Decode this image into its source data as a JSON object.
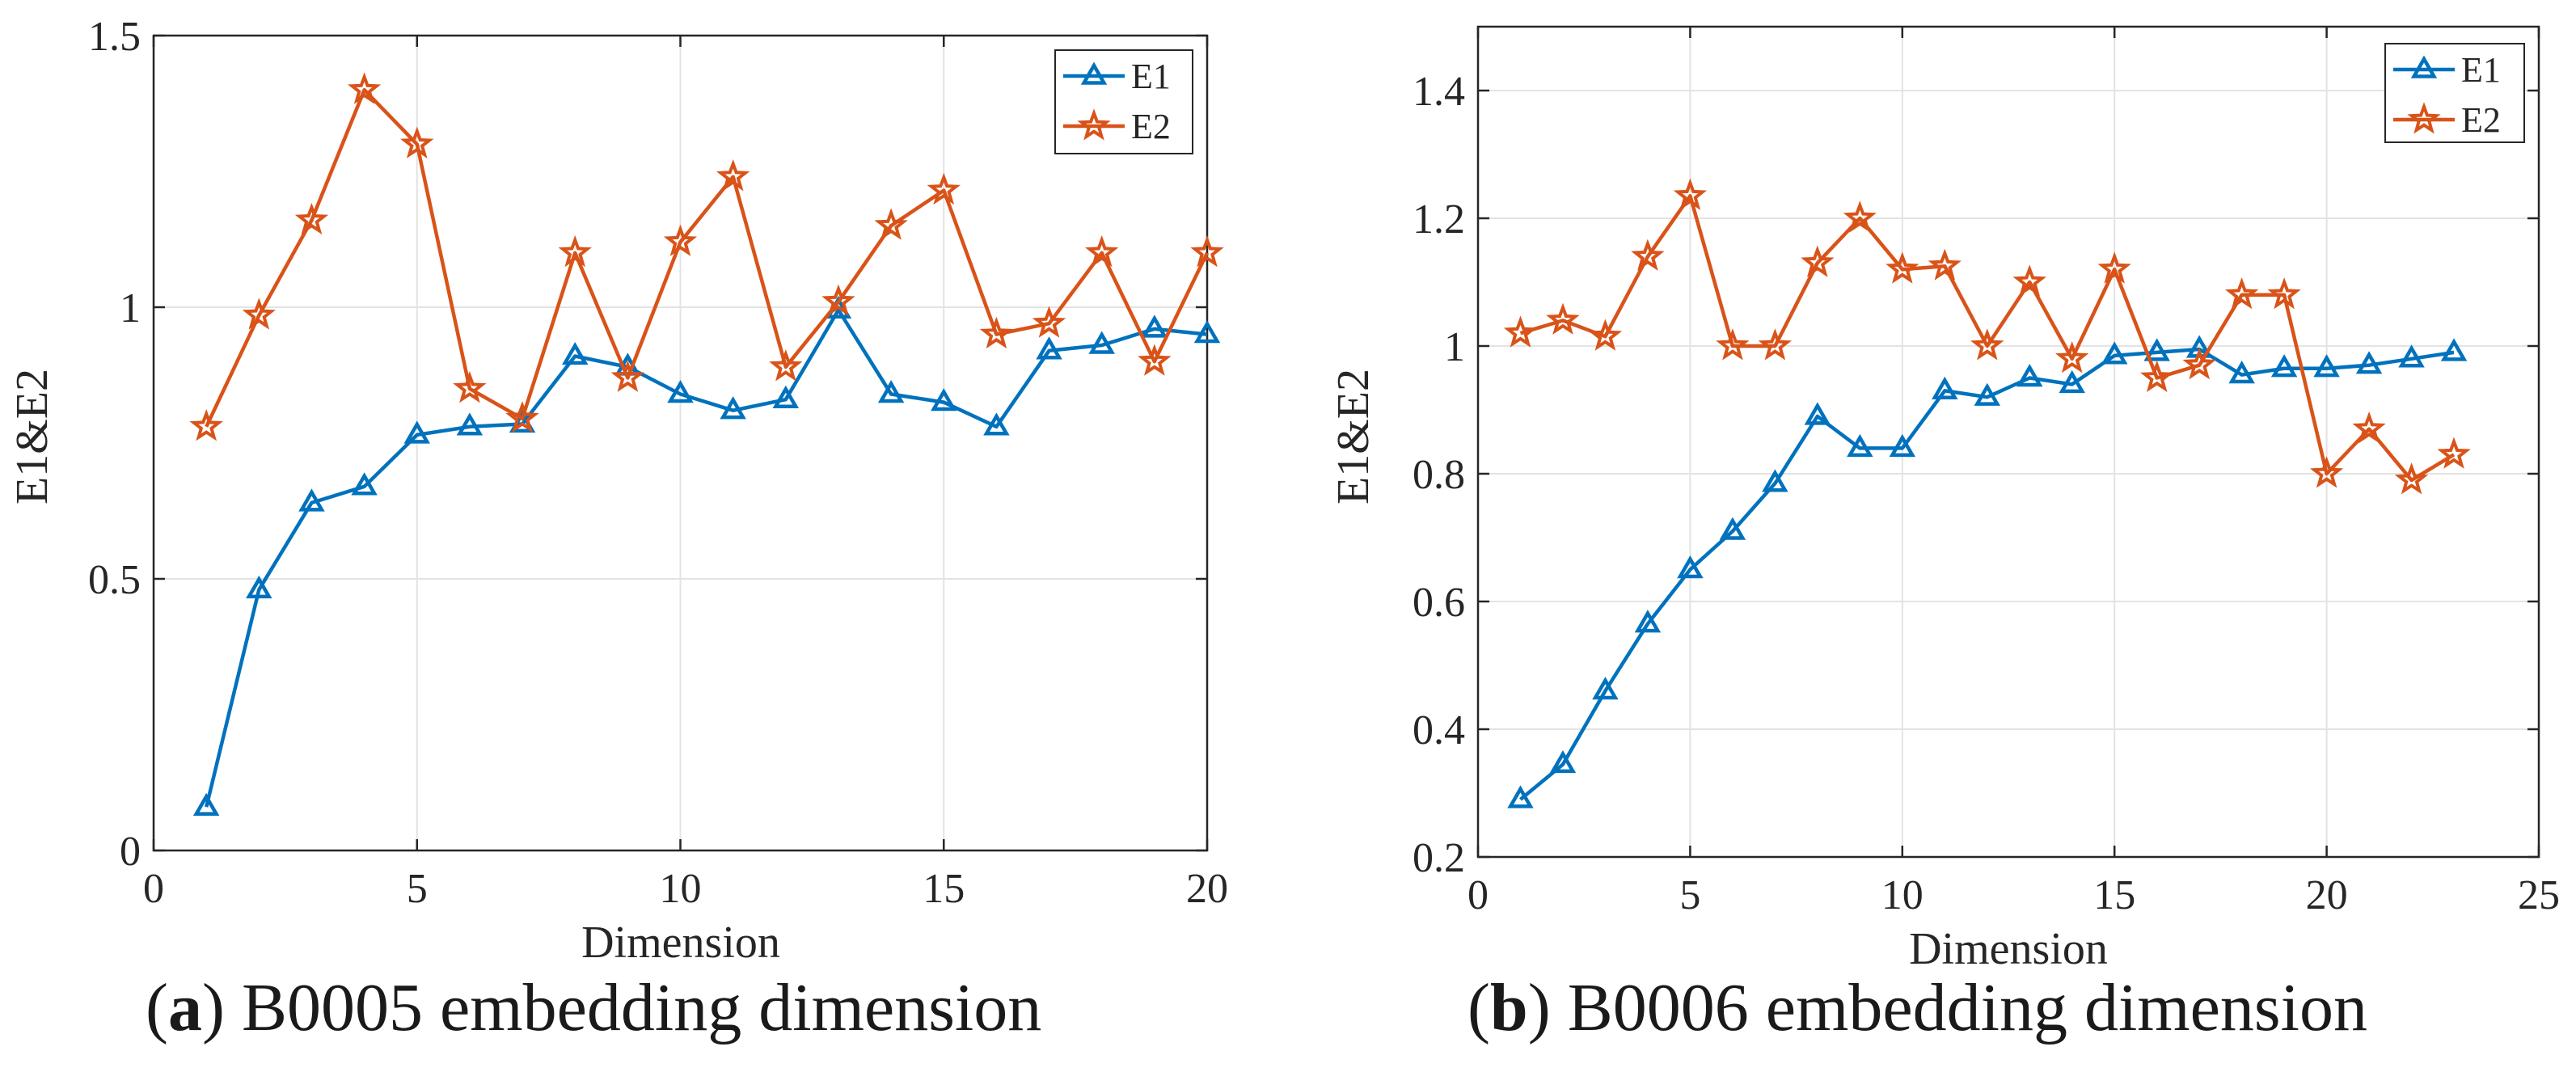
{
  "colors": {
    "E1": "#0072BD",
    "E2": "#D95319"
  },
  "chart_data": [
    {
      "type": "line",
      "caption_letter": "a",
      "caption_text": " B0005 embedding dimension",
      "xlabel": "Dimension",
      "ylabel": "E1&E2",
      "xlim": [
        0,
        20
      ],
      "ylim": [
        0,
        1.5
      ],
      "xticks": [
        0,
        5,
        10,
        15,
        20
      ],
      "yticks": [
        0,
        0.5,
        1,
        1.5
      ],
      "xtick_labels": [
        "0",
        "5",
        "10",
        "15",
        "20"
      ],
      "ytick_labels": [
        "0",
        "0.5",
        "1",
        "1.5"
      ],
      "grid": true,
      "legend_position": "top-right",
      "series": [
        {
          "name": "E1",
          "marker": "triangle",
          "x": [
            1,
            2,
            3,
            4,
            5,
            6,
            7,
            8,
            9,
            10,
            11,
            12,
            13,
            14,
            15,
            16,
            17,
            18,
            19,
            20
          ],
          "values": [
            0.08,
            0.48,
            0.64,
            0.67,
            0.765,
            0.78,
            0.785,
            0.91,
            0.89,
            0.84,
            0.81,
            0.83,
            0.995,
            0.84,
            0.825,
            0.78,
            0.92,
            0.93,
            0.96,
            0.95
          ]
        },
        {
          "name": "E2",
          "marker": "star",
          "x": [
            1,
            2,
            3,
            4,
            5,
            6,
            7,
            8,
            9,
            10,
            11,
            12,
            13,
            14,
            15,
            16,
            17,
            18,
            19,
            20
          ],
          "values": [
            0.78,
            0.985,
            1.16,
            1.4,
            1.3,
            0.85,
            0.795,
            1.1,
            0.87,
            1.12,
            1.24,
            0.89,
            1.01,
            1.15,
            1.215,
            0.95,
            0.97,
            1.1,
            0.9,
            1.1
          ]
        }
      ]
    },
    {
      "type": "line",
      "caption_letter": "b",
      "caption_text": " B0006 embedding dimension",
      "xlabel": "Dimension",
      "ylabel": "E1&E2",
      "xlim": [
        0,
        25
      ],
      "ylim": [
        0.2,
        1.5
      ],
      "xticks": [
        0,
        5,
        10,
        15,
        20,
        25
      ],
      "yticks": [
        0.2,
        0.4,
        0.6,
        0.8,
        1,
        1.2,
        1.4
      ],
      "xtick_labels": [
        "0",
        "5",
        "10",
        "15",
        "20",
        "25"
      ],
      "ytick_labels": [
        "0.2",
        "0.4",
        "0.6",
        "0.8",
        "1",
        "1.2",
        "1.4"
      ],
      "grid": true,
      "legend_position": "top-right",
      "series": [
        {
          "name": "E1",
          "marker": "triangle",
          "x": [
            1,
            2,
            3,
            4,
            5,
            6,
            7,
            8,
            9,
            10,
            11,
            12,
            13,
            14,
            15,
            16,
            17,
            18,
            19,
            20,
            21,
            22,
            23
          ],
          "values": [
            0.29,
            0.345,
            0.46,
            0.565,
            0.65,
            0.71,
            0.785,
            0.89,
            0.84,
            0.84,
            0.93,
            0.92,
            0.95,
            0.94,
            0.985,
            0.99,
            0.995,
            0.955,
            0.965,
            0.965,
            0.97,
            0.98,
            0.99
          ]
        },
        {
          "name": "E2",
          "marker": "star",
          "x": [
            1,
            2,
            3,
            4,
            5,
            6,
            7,
            8,
            9,
            10,
            11,
            12,
            13,
            14,
            15,
            16,
            17,
            18,
            19,
            20,
            21,
            22,
            23
          ],
          "values": [
            1.02,
            1.04,
            1.015,
            1.14,
            1.235,
            1.0,
            1.0,
            1.13,
            1.2,
            1.12,
            1.125,
            1.0,
            1.1,
            0.98,
            1.12,
            0.95,
            0.97,
            1.08,
            1.08,
            0.8,
            0.87,
            0.79,
            0.83
          ]
        }
      ]
    }
  ]
}
